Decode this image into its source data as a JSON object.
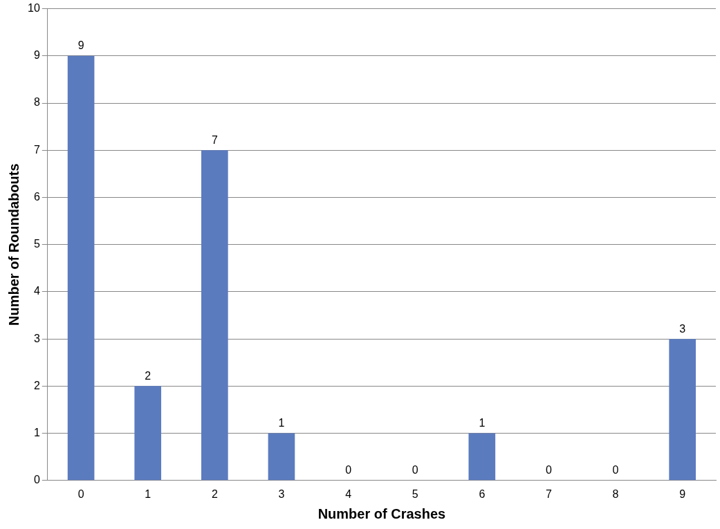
{
  "chart_data": {
    "type": "bar",
    "xlabel": "Number of Crashes",
    "ylabel": "Number of Roundabouts",
    "categories": [
      "0",
      "1",
      "2",
      "3",
      "4",
      "5",
      "6",
      "7",
      "8",
      "9"
    ],
    "values": [
      9,
      2,
      7,
      1,
      0,
      0,
      1,
      0,
      0,
      3
    ],
    "color": "#5b7bbf",
    "ylim": [
      0,
      10
    ],
    "yticks": [
      0,
      1,
      2,
      3,
      4,
      5,
      6,
      7,
      8,
      9,
      10
    ],
    "grid": "y",
    "data_labels": true,
    "legend": false
  }
}
